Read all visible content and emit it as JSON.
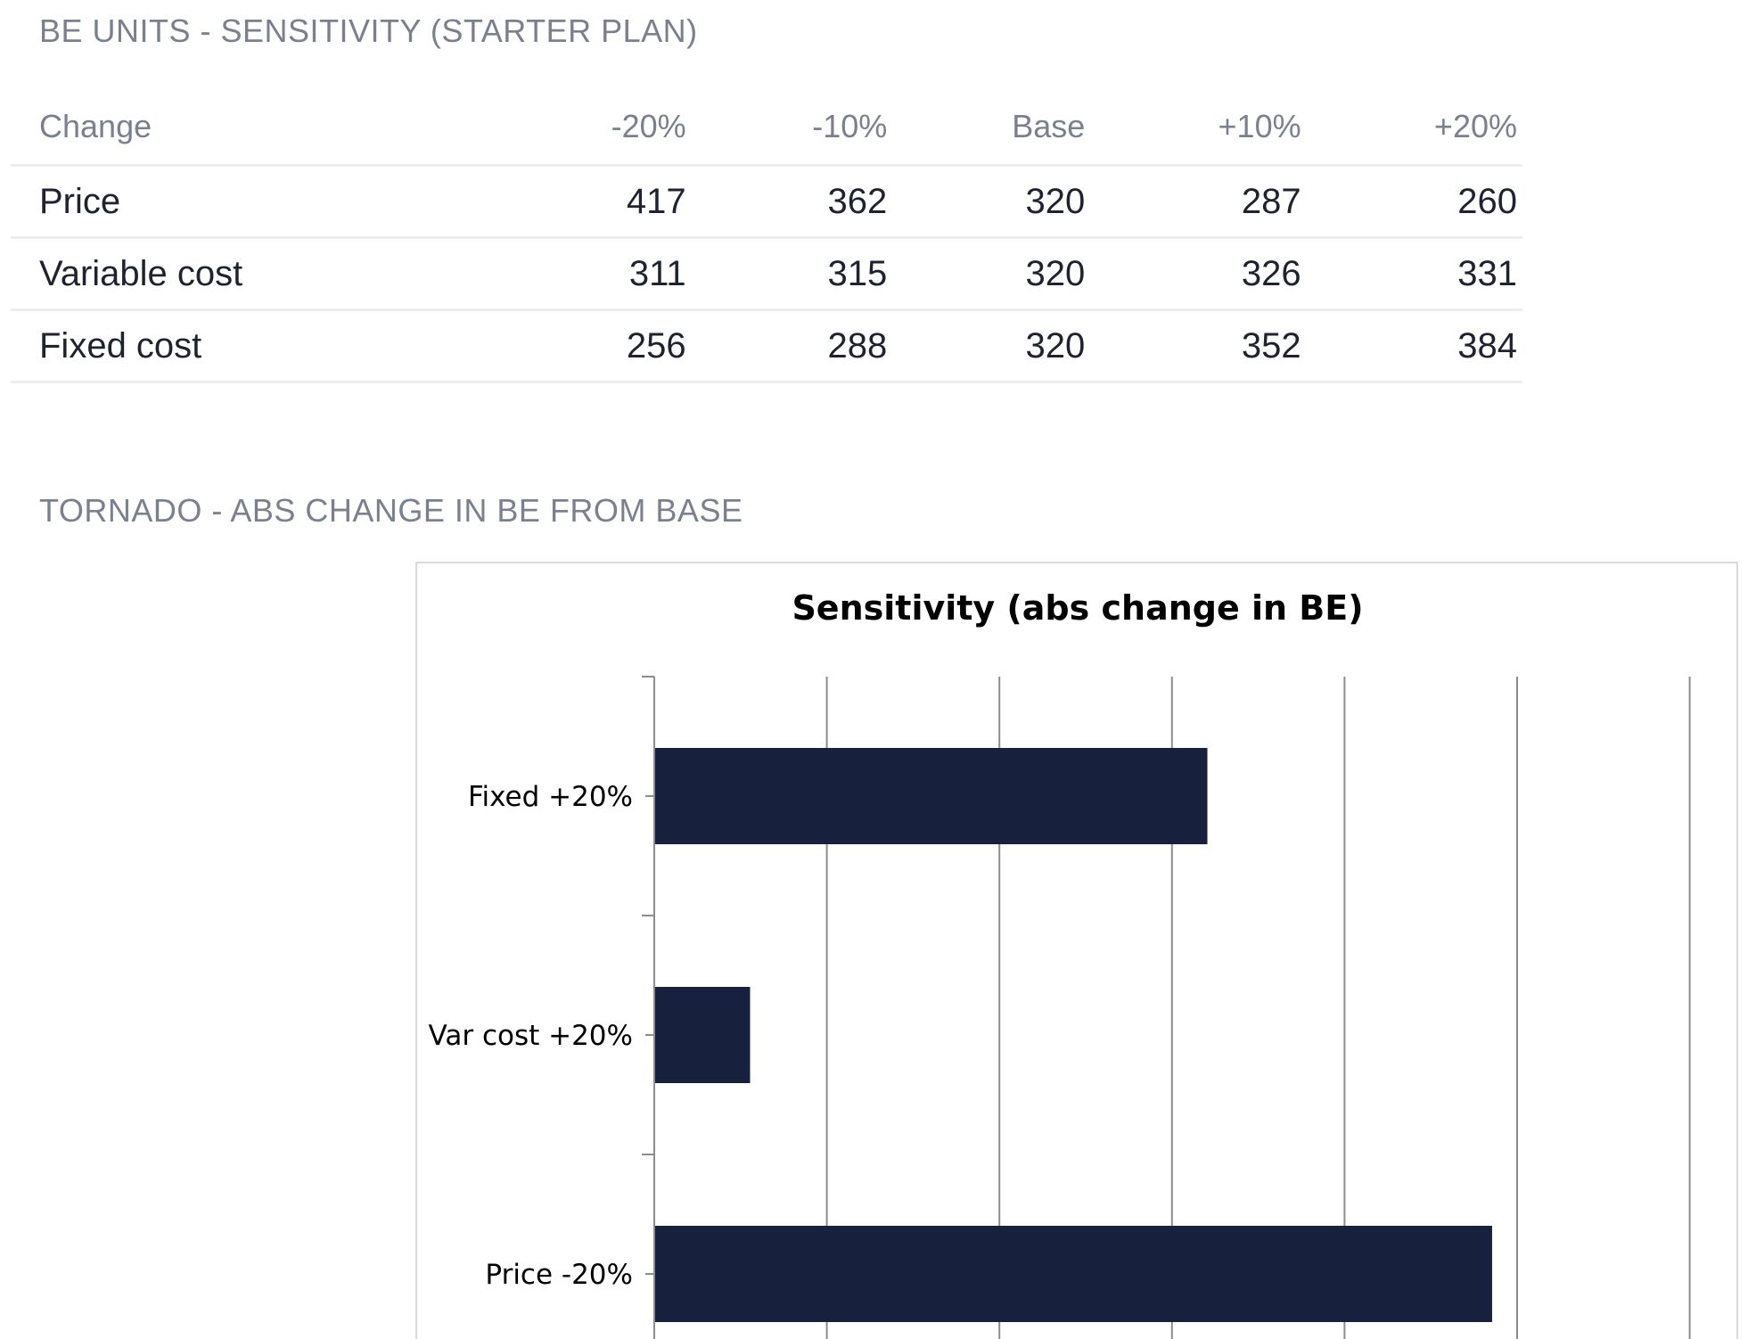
{
  "sensitivity": {
    "title": "BE UNITS - SENSITIVITY (STARTER PLAN)",
    "columns": [
      "Change",
      "-20%",
      "-10%",
      "Base",
      "+10%",
      "+20%"
    ],
    "rows": [
      {
        "label": "Price",
        "values": [
          "417",
          "362",
          "320",
          "287",
          "260"
        ]
      },
      {
        "label": "Variable cost",
        "values": [
          "311",
          "315",
          "320",
          "326",
          "331"
        ]
      },
      {
        "label": "Fixed cost",
        "values": [
          "256",
          "288",
          "320",
          "352",
          "384"
        ]
      }
    ]
  },
  "tornado": {
    "section_title": "TORNADO - ABS CHANGE IN BE FROM BASE"
  },
  "chart_data": {
    "type": "bar",
    "orientation": "horizontal",
    "title": "Sensitivity (abs change in BE)",
    "categories": [
      "Fixed +20%",
      "Var cost +20%",
      "Price -20%"
    ],
    "values": [
      64,
      11,
      97
    ],
    "xlim": [
      0,
      120
    ],
    "x_gridline_step": 20,
    "grid": true,
    "bar_color": "#17213e"
  }
}
